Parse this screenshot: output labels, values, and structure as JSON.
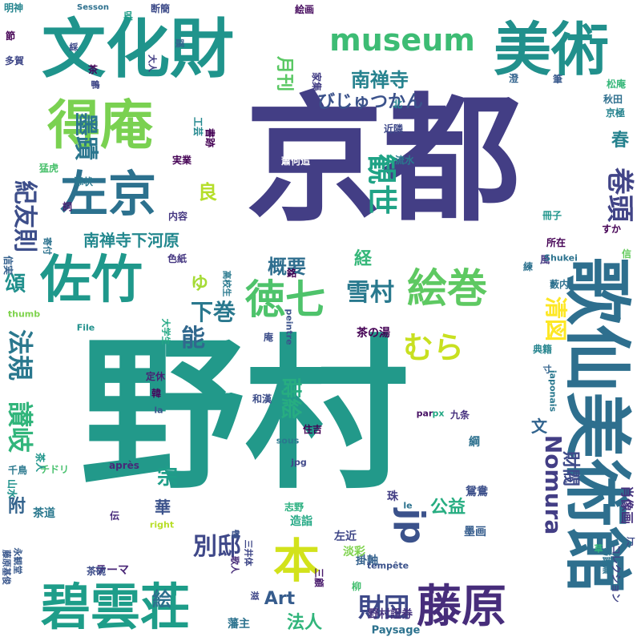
{
  "word_cloud": {
    "words": [
      {
        "text": "野村",
        "color": "#22998a"
      },
      {
        "text": "京都",
        "color": "#433e85"
      },
      {
        "text": "文化財",
        "color": "#1f948c"
      },
      {
        "text": "美術",
        "color": "#21908c"
      },
      {
        "text": "得庵",
        "color": "#7ad151"
      },
      {
        "text": "左京",
        "color": "#2c718e"
      },
      {
        "text": "佐竹",
        "color": "#1f988b"
      },
      {
        "text": "碧雲荘",
        "color": "#1e9d89"
      },
      {
        "text": "歌仙美術館",
        "color": "#2e6f8e"
      },
      {
        "text": "本",
        "color": "#d2e21b"
      },
      {
        "text": "藤原",
        "color": "#472d7b"
      },
      {
        "text": "絵巻",
        "color": "#5ec962"
      },
      {
        "text": "徳七",
        "color": "#4ec36b"
      },
      {
        "text": "museum",
        "color": "#3dbc74"
      },
      {
        "text": "jp",
        "color": "#3b528b"
      },
      {
        "text": "財団",
        "color": "#3e4989"
      },
      {
        "text": "別邸",
        "color": "#3f4889"
      },
      {
        "text": "むら",
        "color": "#c8e020"
      },
      {
        "text": "観世",
        "color": "#20a386"
      },
      {
        "text": "墨蹟",
        "color": "#2a768e"
      },
      {
        "text": "雪村",
        "color": "#29798e"
      },
      {
        "text": "南禅寺",
        "color": "#26828e"
      },
      {
        "text": "南禅寺下河原",
        "color": "#23888e"
      },
      {
        "text": "紀友則",
        "color": "#3d4e8a"
      },
      {
        "text": "Nomura",
        "color": "#433e85"
      },
      {
        "text": "月刊",
        "color": "#5ac864"
      },
      {
        "text": "能",
        "color": "#31688e"
      },
      {
        "text": "下巻",
        "color": "#2a788e"
      },
      {
        "text": "卷頭",
        "color": "#414487"
      },
      {
        "text": "春",
        "color": "#26828e"
      },
      {
        "text": "頌",
        "color": "#21908d"
      },
      {
        "text": "讃岐",
        "color": "#31b57b"
      },
      {
        "text": "法規",
        "color": "#2a788e"
      },
      {
        "text": "概要",
        "color": "#2e6e8e"
      },
      {
        "text": "清図",
        "color": "#fde725"
      },
      {
        "text": "肖像画",
        "color": "#46327e"
      },
      {
        "text": "蒔絵",
        "color": "#27ad81"
      },
      {
        "text": "宗",
        "color": "#1f9e89"
      },
      {
        "text": "Art",
        "color": "#365c8d"
      },
      {
        "text": "法人",
        "color": "#31b57b"
      },
      {
        "text": "公益",
        "color": "#27ad81"
      },
      {
        "text": "絵",
        "color": "#2d708e"
      },
      {
        "text": "良",
        "color": "#b5de2b"
      },
      {
        "text": "経",
        "color": "#35b779"
      },
      {
        "text": "ゆ",
        "color": "#a5db36"
      },
      {
        "text": "びじゅつかん",
        "color": "#3b528b"
      },
      {
        "text": "華",
        "color": "#3b528b"
      },
      {
        "text": "文",
        "color": "#32648e"
      },
      {
        "text": "附",
        "color": "#33638d"
      },
      {
        "text": "茶の湯",
        "color": "#440154"
      },
      {
        "text": "野村證券",
        "color": "#46337e"
      },
      {
        "text": "財閥",
        "color": "#3e4a89"
      },
      {
        "text": "掛軸",
        "color": "#34618d"
      },
      {
        "text": "三顧",
        "color": "#481a6c"
      },
      {
        "text": "Paysage",
        "color": "#2c728e"
      },
      {
        "text": "テーマ",
        "color": "#482576"
      },
      {
        "text": "茶道",
        "color": "#2a788e"
      },
      {
        "text": "茶碗",
        "color": "#3d4d8a"
      },
      {
        "text": "藩主",
        "color": "#2c728e"
      },
      {
        "text": "左近",
        "color": "#3f4788"
      },
      {
        "text": "淡彩",
        "color": "#7fd34e"
      },
      {
        "text": "造詣",
        "color": "#22a884"
      },
      {
        "text": "墨画",
        "color": "#365d8d"
      },
      {
        "text": "志野",
        "color": "#29af7f"
      },
      {
        "text": "鴛鴦",
        "color": "#3c4f8a"
      },
      {
        "text": "珠",
        "color": "#433e85"
      },
      {
        "text": "九条",
        "color": "#46307e"
      },
      {
        "text": "綱",
        "color": "#2d708e"
      },
      {
        "text": "住吉",
        "color": "#440154"
      },
      {
        "text": "和漢",
        "color": "#3d4e8a"
      },
      {
        "text": "典籍",
        "color": "#25848e"
      },
      {
        "text": "定休",
        "color": "#482173"
      },
      {
        "text": "韓",
        "color": "#460a5d"
      },
      {
        "text": "千鳥",
        "color": "#2a788e"
      },
      {
        "text": "チドリ",
        "color": "#48c16e"
      },
      {
        "text": "茶人",
        "color": "#1f958b"
      },
      {
        "text": "山水",
        "color": "#20928c"
      },
      {
        "text": "藪内",
        "color": "#2d708e"
      },
      {
        "text": "所在",
        "color": "#440154"
      },
      {
        "text": "コレクション",
        "color": "#414487"
      },
      {
        "text": "実業",
        "color": "#440154"
      },
      {
        "text": "内容",
        "color": "#453781"
      },
      {
        "text": "色紙",
        "color": "#453781"
      },
      {
        "text": "蕭何追",
        "color": "#ffffff"
      },
      {
        "text": "近隣",
        "color": "#3e4989"
      },
      {
        "text": "流水",
        "color": "#297a8e"
      },
      {
        "text": "秋田",
        "color": "#2e6f8e"
      },
      {
        "text": "京極",
        "color": "#25838e"
      },
      {
        "text": "松庵",
        "color": "#35b779"
      },
      {
        "text": "澄",
        "color": "#32648e"
      },
      {
        "text": "筆",
        "color": "#38598c"
      },
      {
        "text": "北",
        "color": "#25858e"
      },
      {
        "text": "添状",
        "color": "#2a788e"
      },
      {
        "text": "書跡",
        "color": "#440154"
      },
      {
        "text": "工芸",
        "color": "#23888e"
      },
      {
        "text": "家集",
        "color": "#433e85"
      },
      {
        "text": "明神",
        "color": "#25848e"
      },
      {
        "text": "多賀",
        "color": "#3f4788"
      },
      {
        "text": "節",
        "color": "#440154"
      },
      {
        "text": "Sesson",
        "color": "#2d708e"
      },
      {
        "text": "絵画",
        "color": "#460b5e"
      },
      {
        "text": "断簡",
        "color": "#3e4c8a"
      },
      {
        "text": "呉",
        "color": "#1f9e89"
      },
      {
        "text": "猛虎",
        "color": "#4ac16d"
      },
      {
        "text": "詞",
        "color": "#481d6f"
      },
      {
        "text": "銘",
        "color": "#440154"
      },
      {
        "text": "信実",
        "color": "#34608d"
      },
      {
        "text": "寄付",
        "color": "#2c728e"
      },
      {
        "text": "風",
        "color": "#453882"
      },
      {
        "text": "練",
        "color": "#2c718e"
      },
      {
        "text": "冊子",
        "color": "#1f958b"
      },
      {
        "text": "すか",
        "color": "#440154"
      },
      {
        "text": "信",
        "color": "#65cb5e"
      },
      {
        "text": "Shukei",
        "color": "#2c738e"
      },
      {
        "text": "高校生",
        "color": "#29798e"
      },
      {
        "text": "大学生",
        "color": "#22a884"
      },
      {
        "text": "thumb",
        "color": "#7fd34e"
      },
      {
        "text": "File",
        "color": "#21918c"
      },
      {
        "text": "庵",
        "color": "#3d4e8a"
      },
      {
        "text": "peintre",
        "color": "#3b528b"
      },
      {
        "text": "japonais",
        "color": "#2a788e"
      },
      {
        "text": "la",
        "color": "#39568c"
      },
      {
        "text": "par",
        "color": "#471164"
      },
      {
        "text": "px",
        "color": "#22a884"
      },
      {
        "text": "sous",
        "color": "#2a788e"
      },
      {
        "text": "après",
        "color": "#482878"
      },
      {
        "text": "jpg",
        "color": "#3f4788"
      },
      {
        "text": "le",
        "color": "#2c728e"
      },
      {
        "text": "right",
        "color": "#b8de29"
      },
      {
        "text": "tempête",
        "color": "#3b528b"
      },
      {
        "text": "伝",
        "color": "#472a7a"
      },
      {
        "text": "永観堂",
        "color": "#38598c"
      },
      {
        "text": "藤原基俊",
        "color": "#39568c"
      },
      {
        "text": "歌人",
        "color": "#472c7a"
      },
      {
        "text": "盧",
        "color": "#3b528b"
      },
      {
        "text": "柳",
        "color": "#44bf70"
      },
      {
        "text": "滋",
        "color": "#3f4788"
      },
      {
        "text": "三井体",
        "color": "#3f4788"
      },
      {
        "text": "与謝蕪",
        "color": "#2c728e"
      },
      {
        "text": "草",
        "color": "#31b57b"
      },
      {
        "text": "汀",
        "color": "#3e4a89"
      },
      {
        "text": "寸",
        "color": "#33638d"
      },
      {
        "text": "鴨",
        "color": "#3f4788"
      },
      {
        "text": "茶",
        "color": "#450559"
      },
      {
        "text": "大人",
        "color": "#433e85"
      },
      {
        "text": "綵",
        "color": "#3e4a89"
      },
      {
        "text": "蹊",
        "color": "#34618d"
      }
    ]
  }
}
